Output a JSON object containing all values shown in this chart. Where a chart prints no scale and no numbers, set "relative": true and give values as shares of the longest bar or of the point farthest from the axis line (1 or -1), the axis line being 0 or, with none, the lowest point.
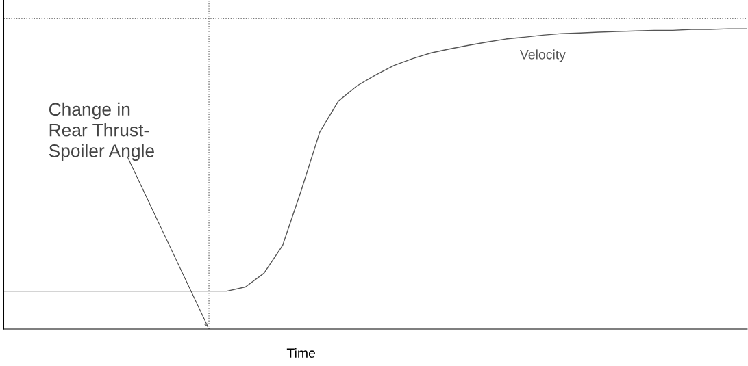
{
  "chart_data": {
    "type": "line",
    "relative": true,
    "xlabel": "Time",
    "categories": [
      null,
      null,
      null,
      null,
      null,
      null,
      null,
      null,
      null,
      null,
      null,
      null,
      null,
      null,
      null,
      null,
      null,
      null,
      null,
      null,
      null,
      null,
      null,
      null,
      null,
      null,
      null,
      null,
      null,
      null,
      null,
      null,
      null,
      null,
      null,
      null,
      null,
      null,
      null,
      null,
      null
    ],
    "series": [
      {
        "name": "Velocity",
        "color": "#555555",
        "values": [
          0.126,
          0.126,
          0.126,
          0.126,
          0.126,
          0.126,
          0.126,
          0.126,
          0.126,
          0.126,
          0.126,
          0.126,
          0.126,
          0.14,
          0.186,
          0.278,
          0.461,
          0.656,
          0.759,
          0.81,
          0.846,
          0.878,
          0.901,
          0.92,
          0.933,
          0.945,
          0.956,
          0.966,
          0.972,
          0.979,
          0.984,
          0.986,
          0.989,
          0.991,
          0.993,
          0.995,
          0.995,
          0.998,
          0.998,
          1,
          1
        ]
      }
    ],
    "ref_lines": [
      {
        "axis": "y",
        "value": 1.034,
        "line_style": "dotted",
        "color": "#777777"
      }
    ],
    "annotations": [
      "Change in\nRear Thrust-\nSpoiler Angle"
    ],
    "legend": false,
    "marker": "none",
    "line_style": "solid"
  }
}
